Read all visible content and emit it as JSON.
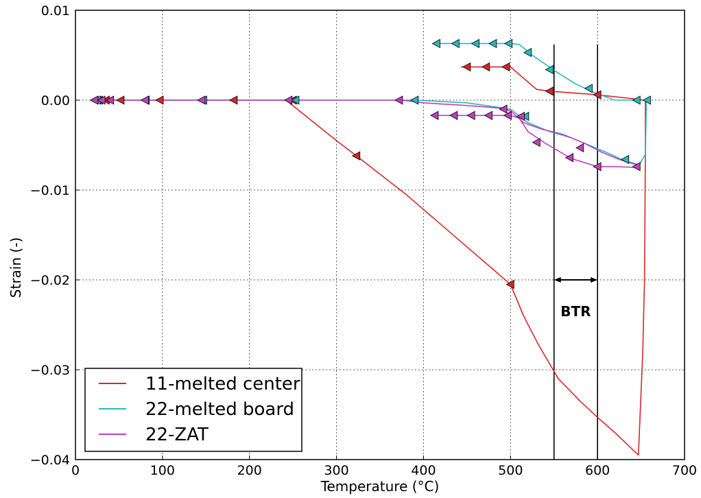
{
  "chart_data": {
    "type": "line",
    "xlabel": "Temperature (°C)",
    "ylabel": "Strain (-)",
    "xlim": [
      0,
      700
    ],
    "ylim": [
      -0.04,
      0.01
    ],
    "x_ticks": [
      0,
      100,
      200,
      300,
      400,
      500,
      600,
      700
    ],
    "x_tick_labels": [
      "0",
      "100",
      "200",
      "300",
      "400",
      "500",
      "600",
      "700"
    ],
    "y_ticks": [
      0.01,
      0.0,
      -0.01,
      -0.02,
      -0.03,
      -0.04
    ],
    "y_tick_labels": [
      "0.01",
      "0.00",
      "−0.01",
      "−0.02",
      "−0.03",
      "−0.04"
    ],
    "grid": true,
    "legend_position": "lower-left",
    "series": [
      {
        "name": "11-melted center",
        "color": "#d62728",
        "x": [
          20,
          50,
          100,
          150,
          200,
          242,
          300,
          323,
          380,
          440,
          500,
          515,
          532,
          555,
          580,
          600,
          620,
          647,
          652,
          654,
          655,
          655,
          600,
          545,
          530,
          500,
          472,
          450,
          443
        ],
        "y": [
          0.0,
          0.0,
          0.0,
          0.0,
          0.0,
          0.0,
          -0.0045,
          -0.0062,
          -0.0105,
          -0.0155,
          -0.0205,
          -0.024,
          -0.0272,
          -0.031,
          -0.0335,
          -0.0353,
          -0.037,
          -0.0395,
          -0.028,
          -0.02,
          -0.006,
          0.0,
          0.0006,
          0.001,
          0.0012,
          0.0037,
          0.0037,
          0.0037,
          0.0037
        ],
        "markers_x": [
          22,
          27,
          35,
          52,
          97,
          182,
          250,
          323,
          500,
          545,
          600,
          495,
          472,
          450
        ],
        "markers_y": [
          0.0,
          0.0,
          0.0,
          0.0,
          0.0,
          0.0,
          0.0,
          -0.0062,
          -0.0205,
          0.001,
          0.0006,
          0.0037,
          0.0037,
          0.0037
        ]
      },
      {
        "name": "22-melted board",
        "color": "#2ab7b7",
        "x": [
          20,
          50,
          100,
          150,
          200,
          240,
          300,
          350,
          380,
          390,
          450,
          500,
          520,
          545,
          570,
          590,
          610,
          630,
          648,
          655,
          656,
          656,
          640,
          620,
          595,
          575,
          555,
          540,
          525,
          510,
          500,
          480,
          450,
          412
        ],
        "y": [
          0.0,
          0.0,
          0.0,
          0.0,
          0.0,
          0.0,
          0.0,
          0.0,
          0.0,
          0.0,
          -0.0003,
          -0.001,
          -0.0025,
          -0.0035,
          -0.0042,
          -0.005,
          -0.0058,
          -0.0067,
          -0.0072,
          -0.006,
          -0.001,
          0.0,
          0.0,
          0.0,
          0.0009,
          0.0018,
          0.003,
          0.004,
          0.005,
          0.0062,
          0.0063,
          0.0063,
          0.0063,
          0.0063
        ],
        "markers_x": [
          25,
          81,
          147,
          253,
          390,
          517,
          632,
          645,
          657,
          590,
          545,
          520,
          498,
          480,
          460,
          437,
          415
        ],
        "markers_y": [
          0.0,
          0.0,
          0.0,
          0.0,
          0.0,
          -0.0018,
          -0.0066,
          0.0,
          0.0,
          0.0013,
          0.0034,
          0.0053,
          0.0063,
          0.0063,
          0.0063,
          0.0063,
          0.0063
        ]
      },
      {
        "name": "22-ZAT",
        "color": "#bf3fbf",
        "x": [
          20,
          50,
          100,
          150,
          200,
          240,
          300,
          350,
          375,
          400,
          450,
          490,
          500,
          515,
          535,
          560,
          585,
          605,
          625,
          645,
          648,
          620,
          600,
          570,
          540,
          520,
          510,
          500,
          475,
          455,
          430,
          412
        ],
        "y": [
          0.0,
          0.0,
          0.0,
          0.0,
          0.0,
          0.0,
          0.0,
          0.0,
          0.0,
          -0.0003,
          -0.0006,
          -0.0009,
          -0.0012,
          -0.0025,
          -0.0032,
          -0.0038,
          -0.0048,
          -0.0058,
          -0.0066,
          -0.0072,
          -0.0075,
          -0.0074,
          -0.0074,
          -0.0065,
          -0.0048,
          -0.0035,
          -0.002,
          -0.0017,
          -0.0017,
          -0.0017,
          -0.0017,
          -0.0017
        ],
        "markers_x": [
          22,
          30,
          40,
          80,
          145,
          245,
          372,
          492,
          512,
          580,
          645,
          600,
          568,
          530,
          497,
          475,
          455,
          435,
          413
        ],
        "markers_y": [
          0.0,
          0.0,
          0.0,
          0.0,
          0.0,
          0.0,
          0.0,
          -0.001,
          -0.0018,
          -0.0053,
          -0.0074,
          -0.0074,
          -0.0064,
          -0.0047,
          -0.0017,
          -0.0017,
          -0.0017,
          -0.0017,
          -0.0017
        ]
      }
    ],
    "reference_lines": [
      {
        "x": 550,
        "y_range": [
          -0.04,
          0.0062
        ],
        "color": "#000000"
      },
      {
        "x": 600,
        "y_range": [
          -0.04,
          0.0062
        ],
        "color": "#000000"
      }
    ],
    "annotation": {
      "text": "BTR",
      "arrow_x": [
        550,
        600
      ],
      "arrow_y": -0.02,
      "text_x": 575,
      "text_y": -0.0235
    }
  }
}
